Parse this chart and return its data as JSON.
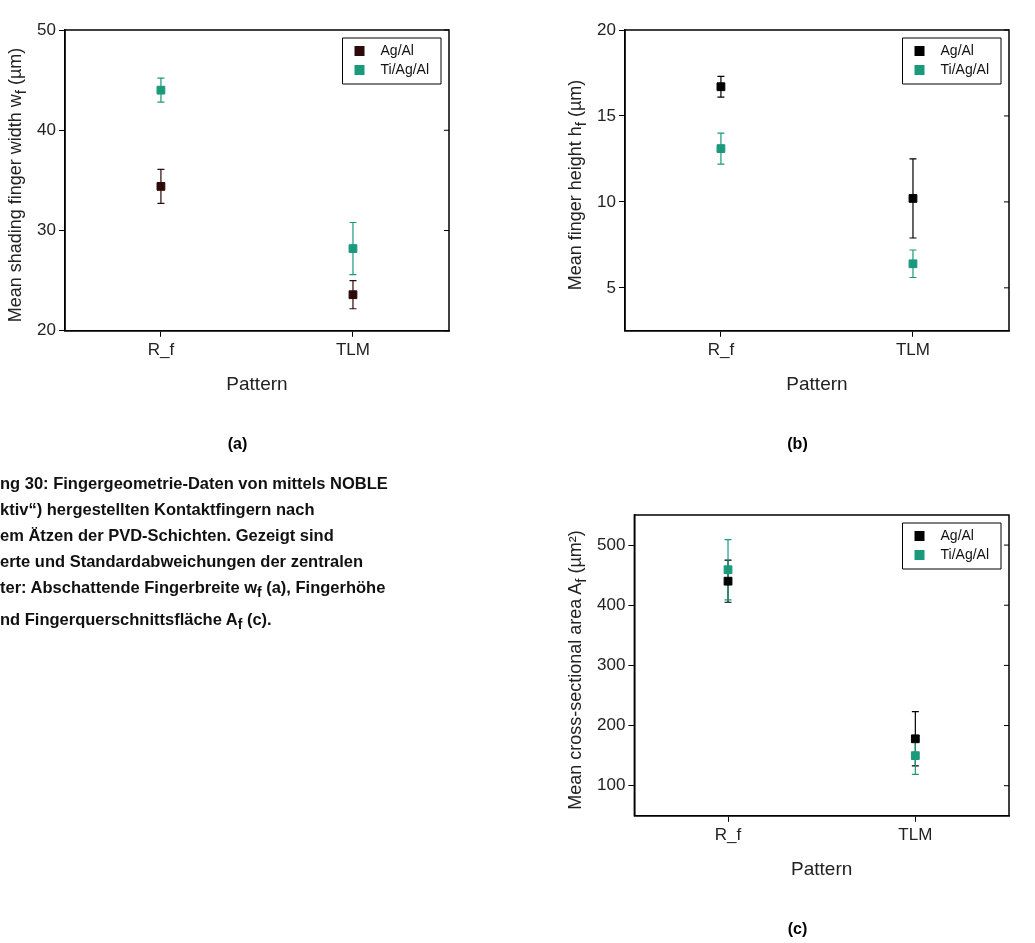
{
  "chart_data": [
    {
      "type": "scatter",
      "categories": [
        "R_f",
        "TLM"
      ],
      "xlabel": "Pattern",
      "ylabel": "Mean shading finger width w$_{f}$ (µm)",
      "ylim": [
        20,
        50
      ],
      "yticks": [
        20,
        30,
        40,
        50
      ],
      "legend": "top right",
      "marker": "square",
      "grid": false,
      "annotations": [
        "(a)"
      ],
      "series": [
        {
          "name": "Ag/Al",
          "color": "#2e0a0a",
          "values": [
            34.4,
            23.6
          ],
          "errors": [
            1.7,
            1.4
          ]
        },
        {
          "name": "Ti/Ag/Al",
          "color": "#1a9a7a",
          "values": [
            44,
            28.2
          ],
          "errors": [
            1.2,
            2.6
          ]
        }
      ]
    },
    {
      "type": "scatter",
      "categories": [
        "R_f",
        "TLM"
      ],
      "xlabel": "Pattern",
      "ylabel": "Mean finger height h$_{f}$ (µm)",
      "ylim": [
        2.5,
        20
      ],
      "yticks": [
        5,
        10,
        15,
        20
      ],
      "legend": "top right",
      "marker": "square",
      "grid": false,
      "annotations": [
        "(b)"
      ],
      "series": [
        {
          "name": "Ag/Al",
          "color": "#000000",
          "values": [
            16.7,
            10.2
          ],
          "errors": [
            0.6,
            2.3
          ]
        },
        {
          "name": "Ti/Ag/Al",
          "color": "#1a9a7a",
          "values": [
            13.1,
            6.4
          ],
          "errors": [
            0.9,
            0.8
          ]
        }
      ]
    },
    {
      "type": "other",
      "annotations": [
        "ng 30: Fingergeometrie-Daten von mittels NOBLE",
        "ktiv“) hergestellten Kontaktfingern nach",
        "em Ätzen der PVD-Schichten. Gezeigt sind",
        "erte und Standardabweichungen der zentralen",
        "ter: Abschattende Fingerbreite w$_{f}$ (a), Fingerhöhe",
        "nd Fingerquerschnittsfläche A$_{f}$ (c)."
      ]
    },
    {
      "type": "scatter",
      "categories": [
        "R_f",
        "TLM"
      ],
      "xlabel": "Pattern",
      "ylabel": "Mean cross-sectional area A$_{f}$ (µm²)",
      "ylim": [
        50,
        550
      ],
      "yticks": [
        100,
        200,
        300,
        400,
        500
      ],
      "legend": "top right",
      "marker": "square",
      "grid": false,
      "annotations": [
        "(c)"
      ],
      "series": [
        {
          "name": "Ag/Al",
          "color": "#000000",
          "values": [
            440,
            178
          ],
          "errors": [
            35,
            45
          ]
        },
        {
          "name": "Ti/Ag/Al",
          "color": "#1a9a7a",
          "values": [
            459,
            150
          ],
          "errors": [
            50,
            31
          ]
        }
      ]
    }
  ]
}
